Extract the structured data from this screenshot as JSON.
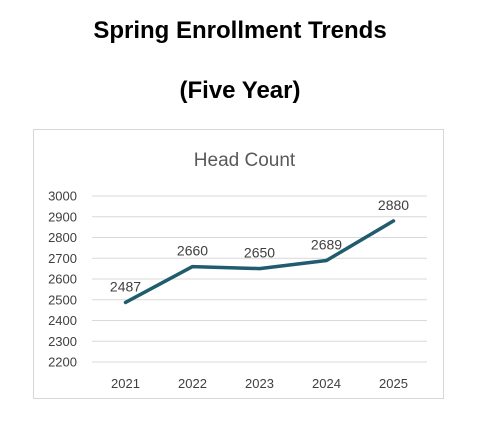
{
  "page": {
    "title_line_1": "Spring Enrollment Trends",
    "title_line_2": "(Five Year)"
  },
  "chart_data": {
    "type": "line",
    "title": "Head Count",
    "xlabel": "",
    "ylabel": "",
    "categories": [
      "2021",
      "2022",
      "2023",
      "2024",
      "2025"
    ],
    "series": [
      {
        "values": [
          2487,
          2660,
          2650,
          2689,
          2880
        ],
        "color": "#1f5c6e"
      }
    ],
    "data_labels": [
      "2487",
      "2660",
      "2650",
      "2689",
      "2880"
    ],
    "ylim": [
      2200,
      3000
    ],
    "yticks": [
      3000,
      2900,
      2800,
      2700,
      2600,
      2500,
      2400,
      2300,
      2200
    ],
    "grid": true,
    "legend": "none"
  }
}
